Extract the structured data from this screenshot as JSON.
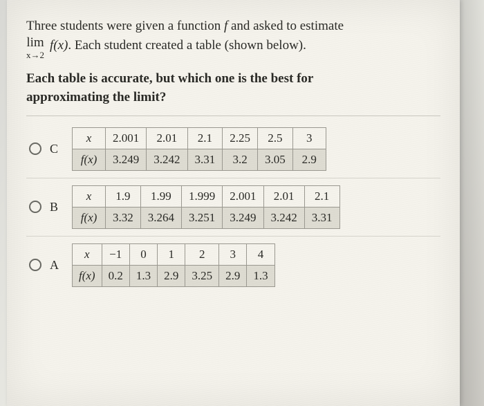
{
  "prompt": {
    "line1_a": "Three students were given a function ",
    "line1_f": "f",
    "line1_b": " and asked to estimate",
    "lim": "lim",
    "lim_sub": "x→2",
    "line2_fx": "f(x)",
    "line2_rest": ". Each student created a table (shown below)."
  },
  "question_l1": "Each table is accurate, but which one is the best for",
  "question_l2": "approximating the limit?",
  "options": [
    {
      "letter": "C",
      "header_label": "x",
      "fx_label": "f(x)",
      "x": [
        "2.001",
        "2.01",
        "2.1",
        "2.25",
        "2.5",
        "3"
      ],
      "fx": [
        "3.249",
        "3.242",
        "3.31",
        "3.2",
        "3.05",
        "2.9"
      ]
    },
    {
      "letter": "B",
      "header_label": "x",
      "fx_label": "f(x)",
      "x": [
        "1.9",
        "1.99",
        "1.999",
        "2.001",
        "2.01",
        "2.1"
      ],
      "fx": [
        "3.32",
        "3.264",
        "3.251",
        "3.249",
        "3.242",
        "3.31"
      ]
    },
    {
      "letter": "A",
      "header_label": "x",
      "fx_label": "f(x)",
      "x": [
        "−1",
        "0",
        "1",
        "2",
        "3",
        "4"
      ],
      "fx": [
        "0.2",
        "1.3",
        "2.9",
        "3.25",
        "2.9",
        "1.3"
      ]
    }
  ],
  "styles": {
    "paper_bg": "#f5f3ec",
    "text_color": "#2a2a26",
    "border_color": "#9a9890",
    "shaded_bg": "#dedcd2",
    "divider": "#d6d4cc",
    "body_fontsize_pt": 14,
    "bold_fontsize_pt": 14
  }
}
